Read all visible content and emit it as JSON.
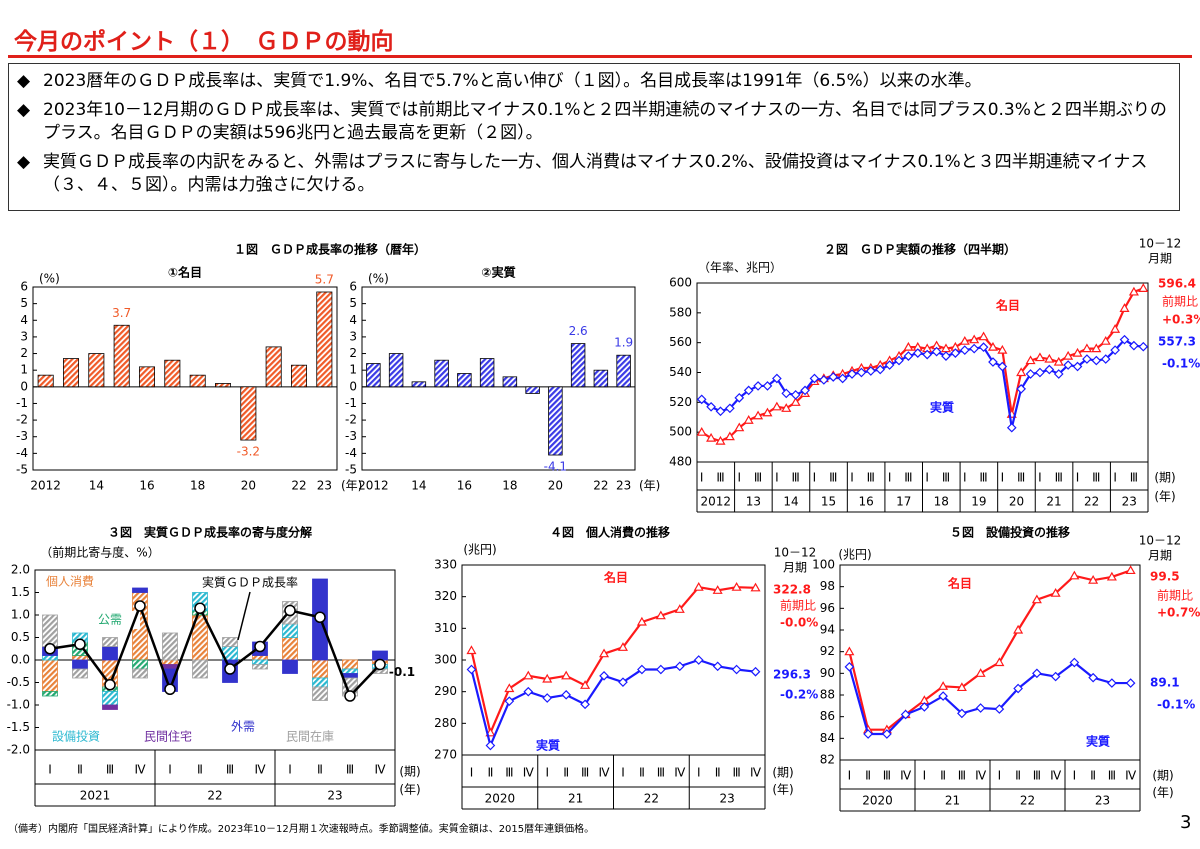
{
  "header": {
    "title": "今月のポイント（１）　ＧＤＰの動向"
  },
  "bullets": [
    "2023暦年のＧＤＰ成長率は、実質で1.9%、名目で5.7%と高い伸び（１図）。名目成長率は1991年（6.5%）以来の水準。",
    "2023年10－12月期のＧＤＰ成長率は、実質では前期比マイナス0.1%と２四半期連続のマイナスの一方、名目では同プラス0.3%と２四半期ぶりのプラス。名目ＧＤＰの実額は596兆円と過去最高を更新（２図）。",
    "実質ＧＤＰ成長率の内訳をみると、外需はプラスに寄与した一方、個人消費はマイナス0.2%、設備投資はマイナス0.1%と３四半期連続マイナス（３、４、５図）。内需は力強さに欠ける。"
  ],
  "chart_data": [
    {
      "type": "bar",
      "title": "１図　ＧＤＰ成長率の推移（暦年）",
      "y_label": "(%)",
      "x_unit": "(年)",
      "categories": [
        "2012",
        null,
        "14",
        null,
        "16",
        null,
        "18",
        null,
        "20",
        null,
        "22",
        "23"
      ],
      "ylim": [
        -5,
        6
      ],
      "yticks": [
        -5,
        -4,
        -3,
        -2,
        -1,
        0,
        1,
        2,
        3,
        4,
        5,
        6
      ],
      "panels": [
        {
          "subtitle": "①名目",
          "color": "#f05a28",
          "values": [
            0.7,
            1.7,
            2.0,
            3.7,
            1.2,
            1.6,
            0.7,
            0.2,
            -3.2,
            2.4,
            1.3,
            5.7
          ],
          "value_labels": [
            null,
            null,
            null,
            "3.7",
            null,
            null,
            null,
            null,
            "-3.2",
            null,
            null,
            "5.7"
          ]
        },
        {
          "subtitle": "②実質",
          "color": "#3a3ae6",
          "values": [
            1.4,
            2.0,
            0.3,
            1.6,
            0.8,
            1.7,
            0.6,
            -0.4,
            -4.1,
            2.6,
            1.0,
            1.9
          ],
          "value_labels": [
            null,
            null,
            null,
            null,
            null,
            null,
            null,
            null,
            "-4.1",
            "2.6",
            null,
            "1.9"
          ]
        }
      ]
    },
    {
      "type": "line",
      "title": "２図　ＧＤＰ実額の推移（四半期）",
      "y_label": "（年率、兆円）",
      "x_unit": "(期)",
      "x_unit2": "(年)",
      "period_label": [
        "10－12",
        "月期"
      ],
      "categories": [
        "Ⅰ",
        null,
        "Ⅲ",
        null,
        "Ⅰ",
        null,
        "Ⅲ",
        null,
        "Ⅰ",
        null,
        "Ⅲ",
        null,
        "Ⅰ",
        null,
        "Ⅲ",
        null,
        "Ⅰ",
        null,
        "Ⅲ",
        null,
        "Ⅰ",
        null,
        "Ⅲ",
        null,
        "Ⅰ",
        null,
        "Ⅲ",
        null,
        "Ⅰ",
        null,
        "Ⅲ",
        null,
        "Ⅰ",
        null,
        "Ⅲ",
        null,
        "Ⅰ",
        null,
        "Ⅲ",
        null,
        "Ⅰ",
        null,
        "Ⅲ",
        null,
        "Ⅰ",
        null,
        "Ⅲ",
        null
      ],
      "year_labels": [
        "2012",
        "13",
        "14",
        "15",
        "16",
        "17",
        "18",
        "19",
        "20",
        "21",
        "22",
        "23"
      ],
      "ylim": [
        480,
        600
      ],
      "yticks": [
        480,
        500,
        520,
        540,
        560,
        580,
        600
      ],
      "series": [
        {
          "name": "名目",
          "color": "#ff1a1a",
          "marker": "triangle",
          "last_label": "596.4",
          "change_prefix": "前期比",
          "change_label": "+0.3%",
          "values": [
            500,
            496,
            494,
            497,
            503,
            508,
            511,
            513,
            517,
            516,
            520,
            526,
            534,
            536,
            538,
            539,
            541,
            543,
            543,
            545,
            548,
            551,
            557,
            557,
            556,
            558,
            556,
            557,
            561,
            562,
            564,
            557,
            555,
            512,
            540,
            548,
            550,
            549,
            547,
            551,
            553,
            556,
            556,
            561,
            569,
            583,
            594,
            596.4
          ]
        },
        {
          "name": "実質",
          "color": "#1a1aff",
          "marker": "diamond",
          "last_label": "557.3",
          "change_label": "-0.1%",
          "values": [
            522,
            517,
            514,
            516,
            523,
            528,
            531,
            531,
            536,
            526,
            525,
            528,
            536,
            535,
            537,
            536,
            539,
            540,
            541,
            542,
            545,
            548,
            551,
            553,
            552,
            554,
            551,
            553,
            555,
            556,
            557,
            547,
            544,
            503,
            529,
            539,
            540,
            542,
            539,
            545,
            544,
            549,
            548,
            549,
            555,
            562,
            558,
            557.3
          ]
        }
      ]
    },
    {
      "type": "stacked_bar",
      "title": "３図　実質ＧＤＰ成長率の寄与度分解",
      "y_label": "（前期比寄与度、%）",
      "x_unit": "(期)",
      "x_unit2": "(年)",
      "categories": [
        "Ⅰ",
        "Ⅱ",
        "Ⅲ",
        "Ⅳ",
        "Ⅰ",
        "Ⅱ",
        "Ⅲ",
        "Ⅳ",
        "Ⅰ",
        "Ⅱ",
        "Ⅲ",
        "Ⅳ"
      ],
      "year_labels": [
        "2021",
        "22",
        "23"
      ],
      "ylim": [
        -2,
        2
      ],
      "yticks": [
        {
          "value": -2,
          "label": "-2.0"
        },
        {
          "value": -1.5,
          "label": "-1.5"
        },
        {
          "value": -1,
          "label": "-1.0"
        },
        {
          "value": -0.5,
          "label": "-0.5"
        },
        {
          "value": 0,
          "label": "0.0"
        },
        {
          "value": 0.5,
          "label": "0.5"
        },
        {
          "value": 1,
          "label": "1.0"
        },
        {
          "value": 1.5,
          "label": "1.5"
        },
        {
          "value": 2,
          "label": "2.0"
        }
      ],
      "series": [
        {
          "name": "個人消費",
          "color": "#e8823a",
          "values": [
            -0.7,
            0.1,
            -0.6,
            1.5,
            -0.1,
            1.0,
            0.0,
            0.1,
            0.5,
            -0.4,
            -0.2,
            -0.1
          ]
        },
        {
          "name": "公需",
          "color": "#22a870",
          "values": [
            -0.1,
            0.3,
            -0.1,
            -0.2,
            0.0,
            0.1,
            0.0,
            0.0,
            0.0,
            0.0,
            0.0,
            0.0
          ]
        },
        {
          "name": "設備投資",
          "color": "#2ab8d0",
          "values": [
            0.1,
            0.2,
            -0.3,
            0.0,
            0.0,
            0.4,
            0.3,
            -0.1,
            0.3,
            -0.2,
            -0.1,
            -0.1
          ]
        },
        {
          "name": "民間住宅",
          "color": "#7030a0",
          "values": [
            0.0,
            0.0,
            -0.1,
            0.0,
            -0.1,
            0.0,
            0.0,
            0.0,
            0.0,
            0.0,
            0.0,
            0.0
          ]
        },
        {
          "name": "外需",
          "color": "#3333cc",
          "values": [
            0.2,
            -0.2,
            0.3,
            0.1,
            -0.5,
            0.0,
            -0.5,
            0.3,
            -0.3,
            1.8,
            -0.1,
            0.2
          ]
        },
        {
          "name": "民間在庫",
          "color": "#a0a0a0",
          "values": [
            0.7,
            -0.2,
            0.2,
            -0.2,
            0.6,
            -0.4,
            0.2,
            -0.1,
            0.5,
            -0.3,
            -0.4,
            -0.1
          ]
        },
        {
          "name": "実質ＧＤＰ成長率",
          "type": "line",
          "color": "#000000",
          "values": [
            0.25,
            0.35,
            -0.55,
            1.2,
            -0.65,
            1.15,
            -0.2,
            0.3,
            1.1,
            0.95,
            -0.8,
            -0.1
          ],
          "value_labels": [
            null,
            null,
            null,
            null,
            null,
            null,
            null,
            null,
            null,
            null,
            null,
            "-0.1"
          ]
        }
      ]
    },
    {
      "type": "line",
      "title": "４図　個人消費の推移",
      "y_label": "(兆円)",
      "x_unit": "(期)",
      "x_unit2": "(年)",
      "period_label": [
        "10－12",
        "月期"
      ],
      "categories": [
        "Ⅰ",
        "Ⅱ",
        "Ⅲ",
        "Ⅳ",
        "Ⅰ",
        "Ⅱ",
        "Ⅲ",
        "Ⅳ",
        "Ⅰ",
        "Ⅱ",
        "Ⅲ",
        "Ⅳ",
        "Ⅰ",
        "Ⅱ",
        "Ⅲ",
        "Ⅳ"
      ],
      "year_labels": [
        "2020",
        "21",
        "22",
        "23"
      ],
      "ylim": [
        270,
        330
      ],
      "yticks": [
        270,
        280,
        290,
        300,
        310,
        320,
        330
      ],
      "series": [
        {
          "name": "名目",
          "color": "#ff1a1a",
          "marker": "triangle",
          "last_label": "322.8",
          "change_prefix": "前期比",
          "change_label": "-0.0%",
          "values": [
            303,
            277,
            291,
            295,
            294,
            295,
            292,
            302,
            304,
            312,
            314,
            316,
            323,
            322,
            323,
            322.8
          ]
        },
        {
          "name": "実質",
          "color": "#1a1aff",
          "marker": "diamond",
          "last_label": "296.3",
          "change_label": "-0.2%",
          "values": [
            297,
            273,
            287,
            290,
            288,
            289,
            286,
            295,
            293,
            297,
            297,
            298,
            300,
            298,
            297,
            296.3
          ]
        }
      ]
    },
    {
      "type": "line",
      "title": "５図　設備投資の推移",
      "y_label": "(兆円)",
      "x_unit": "(期)",
      "x_unit2": "(年)",
      "period_label": [
        "10－12",
        "月期"
      ],
      "categories": [
        "Ⅰ",
        "Ⅱ",
        "Ⅲ",
        "Ⅳ",
        "Ⅰ",
        "Ⅱ",
        "Ⅲ",
        "Ⅳ",
        "Ⅰ",
        "Ⅱ",
        "Ⅲ",
        "Ⅳ",
        "Ⅰ",
        "Ⅱ",
        "Ⅲ",
        "Ⅳ"
      ],
      "year_labels": [
        "2020",
        "21",
        "22",
        "23"
      ],
      "ylim": [
        82,
        100
      ],
      "yticks": [
        82,
        84,
        86,
        88,
        90,
        92,
        94,
        96,
        98,
        100
      ],
      "series": [
        {
          "name": "名目",
          "color": "#ff1a1a",
          "marker": "triangle",
          "last_label": "99.5",
          "change_prefix": "前期比",
          "change_label": "+0.7%",
          "values": [
            92,
            84.8,
            84.8,
            86.2,
            87.5,
            88.8,
            88.7,
            90.0,
            91.0,
            94.0,
            96.8,
            97.4,
            99.0,
            98.6,
            98.9,
            99.5
          ]
        },
        {
          "name": "実質",
          "color": "#1a1aff",
          "marker": "diamond",
          "last_label": "89.1",
          "change_label": "-0.1%",
          "values": [
            90.6,
            84.4,
            84.4,
            86.2,
            86.9,
            87.9,
            86.3,
            86.8,
            86.7,
            88.6,
            90.0,
            89.7,
            91.0,
            89.6,
            89.1,
            89.1
          ]
        }
      ]
    }
  ],
  "footnote": "（備考）内閣府「国民経済計算」により作成。2023年10－12月期１次速報時点。季節調整値。実質金額は、2015暦年連鎖価格。",
  "page_number": "3"
}
